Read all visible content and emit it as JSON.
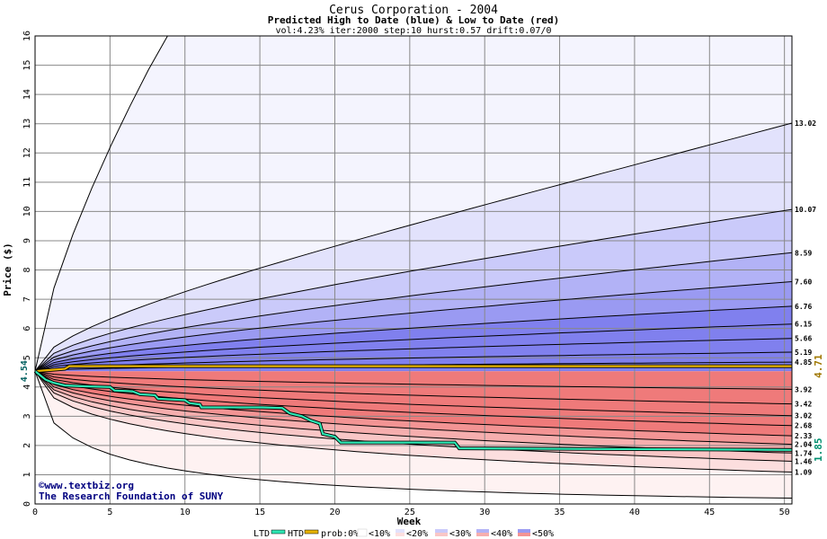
{
  "header": {
    "title": "Cerus Corporation - 2004",
    "subtitle": "Predicted High to Date (blue) &  Low to Date (red)",
    "params": "vol:4.23% iter:2000 step:10 hurst:0.57 drift:0.07/0"
  },
  "copyright": {
    "line1": "©www.textbiz.org",
    "line2": "The Research Foundation of SUNY"
  },
  "legend": {
    "ltd": "LTD",
    "htd": "HTD",
    "prob": "prob:0%",
    "b10": "<10%",
    "b20": "<20%",
    "b30": "<30%",
    "b40": "<40%",
    "b50": "<50%"
  },
  "colors": {
    "ltd_line": "#2ee8b4",
    "htd_line": "#e8b400",
    "blue_bands": [
      "#f4f4fe",
      "#e2e2fc",
      "#cacafa",
      "#b2b2f6",
      "#9a9af2",
      "#8080ee"
    ],
    "red_bands": [
      "#fef2f2",
      "#fcdede",
      "#f9c6c6",
      "#f6aeae",
      "#f39494",
      "#ef7a7a"
    ],
    "grid": "#888888"
  },
  "chart_data": {
    "type": "area",
    "xlabel": "Week",
    "ylabel": "Price ($)",
    "xlim": [
      0,
      50.5
    ],
    "ylim": [
      0,
      16
    ],
    "x_ticks": [
      0,
      5,
      10,
      15,
      20,
      25,
      30,
      35,
      40,
      45,
      50
    ],
    "y_ticks": [
      0,
      1,
      2,
      3,
      4,
      5,
      6,
      7,
      8,
      9,
      10,
      11,
      12,
      13,
      14,
      15,
      16
    ],
    "start_label": "4.54",
    "last_high_label": "4.71",
    "last_low_label": "1.85",
    "high_percentile_labels": [
      "13.02",
      "10.07",
      "8.59",
      "7.60",
      "6.76",
      "6.15",
      "5.66",
      "5.19",
      "4.85"
    ],
    "high_percentile_end_values": [
      13.02,
      10.07,
      8.59,
      7.6,
      6.76,
      6.15,
      5.66,
      5.19,
      4.85
    ],
    "low_percentile_labels": [
      "3.92",
      "3.42",
      "3.02",
      "2.68",
      "2.33",
      "2.04",
      "1.74",
      "1.46",
      "1.09"
    ],
    "low_percentile_end_values": [
      3.92,
      3.42,
      3.02,
      2.68,
      2.33,
      2.04,
      1.74,
      1.46,
      1.09
    ],
    "extreme_high_end": 16,
    "extreme_low_end": 0.2,
    "start_value": 4.54,
    "htd_series": {
      "name": "HTD",
      "x": [
        0,
        1,
        2,
        2.3,
        50.5
      ],
      "y": [
        4.54,
        4.58,
        4.62,
        4.71,
        4.71
      ]
    },
    "ltd_series": {
      "name": "LTD",
      "x": [
        0,
        0.7,
        1.2,
        2,
        3.5,
        5,
        5.3,
        6.5,
        7,
        8,
        8.2,
        10,
        10.3,
        11,
        11.1,
        15,
        15.2,
        16.5,
        17,
        17.8,
        18.4,
        19,
        19.2,
        20,
        20.4,
        28,
        28.3,
        50.5
      ],
      "y": [
        4.54,
        4.25,
        4.15,
        4.05,
        4.02,
        4.0,
        3.88,
        3.85,
        3.75,
        3.72,
        3.6,
        3.55,
        3.45,
        3.4,
        3.3,
        3.3,
        3.3,
        3.28,
        3.1,
        3.0,
        2.85,
        2.75,
        2.4,
        2.3,
        2.1,
        2.1,
        1.9,
        1.85
      ]
    }
  }
}
